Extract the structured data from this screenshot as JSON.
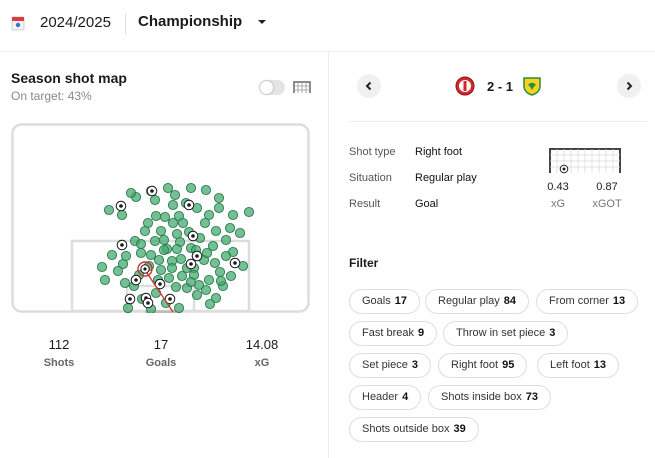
{
  "header": {
    "season": "2024/2025",
    "league": "Championship",
    "league_icon": "league-logo-icon",
    "dropdown_icon": "chevron-down-icon"
  },
  "shot_map": {
    "title": "Season shot map",
    "subtitle": "On target: 43%",
    "toggle_on": false,
    "view_icon": "goal-frame-icon",
    "selected_shot_marker": "selected-shot-ring",
    "stats": [
      {
        "value": "112",
        "label": "Shots"
      },
      {
        "value": "17",
        "label": "Goals"
      },
      {
        "value": "14.08",
        "label": "xG"
      }
    ]
  },
  "match": {
    "home_crest": "bristol-city-crest-icon",
    "away_crest": "norwich-city-crest-icon",
    "score": "2 - 1",
    "prev_icon": "chevron-left-icon",
    "next_icon": "chevron-right-icon"
  },
  "shot_details": {
    "rows": [
      {
        "label": "Shot type",
        "value": "Right foot"
      },
      {
        "label": "Situation",
        "value": "Regular play"
      },
      {
        "label": "Result",
        "value": "Goal"
      }
    ],
    "xg": {
      "value": "0.43",
      "label": "xG"
    },
    "xgot": {
      "value": "0.87",
      "label": "xGOT"
    }
  },
  "filter": {
    "title": "Filter",
    "chips": [
      {
        "label": "Goals",
        "count": "17"
      },
      {
        "label": "Regular play",
        "count": "84"
      },
      {
        "label": "From corner",
        "count": "13"
      },
      {
        "label": "Fast break",
        "count": "9"
      },
      {
        "label": "Throw in set piece",
        "count": "3"
      },
      {
        "label": "Set piece",
        "count": "3"
      },
      {
        "label": "Right foot",
        "count": "95"
      },
      {
        "label": "Left foot",
        "count": "13"
      },
      {
        "label": "Header",
        "count": "4"
      },
      {
        "label": "Shots inside box",
        "count": "73"
      },
      {
        "label": "Shots outside box",
        "count": "39"
      }
    ]
  },
  "colors": {
    "shot_fill": "#3fa86b",
    "shot_stroke": "#2a7d4f",
    "selected": "#d0312d",
    "pitch_line": "#dddddd",
    "home_red": "#d7262c",
    "away_yellow": "#f5d223",
    "away_green": "#2f8b3a"
  }
}
